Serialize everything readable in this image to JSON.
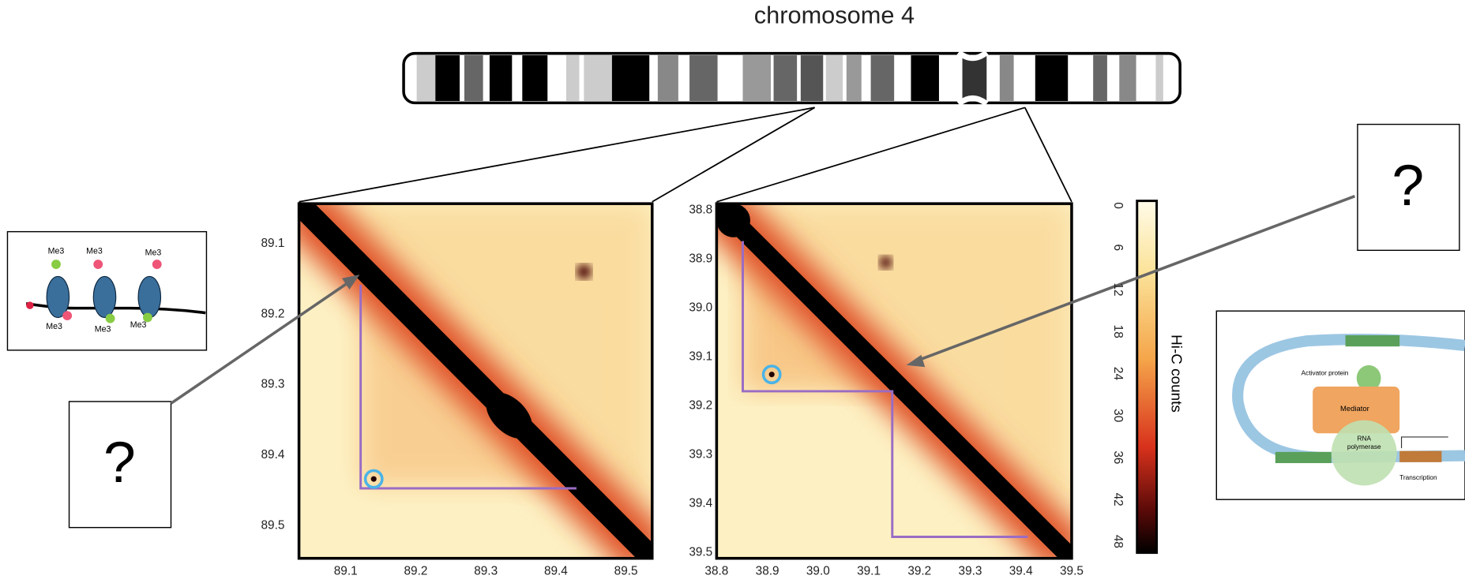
{
  "title": "chromosome 4",
  "heatmaps": [
    {
      "xticks": [
        "89.1",
        "89.2",
        "89.3",
        "89.4",
        "89.5"
      ],
      "yticks": [
        "89.1",
        "89.2",
        "89.3",
        "89.4",
        "89.5"
      ]
    },
    {
      "xticks": [
        "38.8",
        "38.9",
        "39.0",
        "39.1",
        "39.2",
        "39.3",
        "39.4",
        "39.5"
      ],
      "yticks": [
        "38.8",
        "38.9",
        "39.0",
        "39.1",
        "39.2",
        "39.3",
        "39.4",
        "39.5"
      ]
    }
  ],
  "colorbar": {
    "label": "Hi-C counts",
    "ticks": [
      "0",
      "6",
      "12",
      "18",
      "24",
      "30",
      "36",
      "42",
      "48"
    ]
  },
  "callouts": [
    "?",
    "?"
  ],
  "nucleosome_inset": {
    "labels": [
      "Me3",
      "Me3",
      "Me3",
      "Me3",
      "Me3",
      "Me3"
    ]
  },
  "transcription_inset": {
    "labels": [
      "Activator protein",
      "Mediator",
      "RNA",
      "polymerase",
      "Transcription"
    ]
  }
}
